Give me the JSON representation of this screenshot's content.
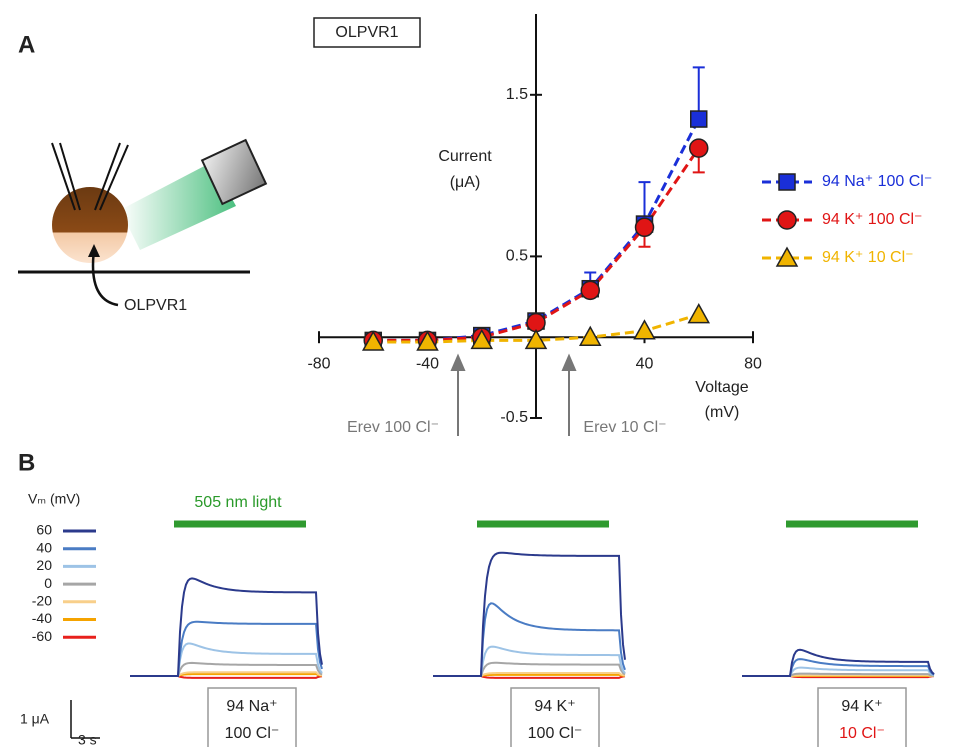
{
  "chart_data": {
    "type": "line",
    "title": "OLPVR1",
    "y_label_lines": [
      "Current",
      "(μA)"
    ],
    "x_label_lines": [
      "Voltage",
      "(mV)"
    ],
    "x": [
      -60,
      -40,
      -20,
      0,
      20,
      40,
      60
    ],
    "series": [
      {
        "name": "94 Na⁺ 100 Cl⁻",
        "color": "#1a2fd8",
        "marker": "square",
        "values": [
          -0.02,
          -0.02,
          0.01,
          0.1,
          0.3,
          0.7,
          1.35
        ],
        "errors": [
          null,
          null,
          null,
          null,
          0.1,
          0.26,
          0.32
        ]
      },
      {
        "name": "94 K⁺ 100 Cl⁻",
        "color": "#e01515",
        "marker": "circle",
        "values": [
          -0.02,
          -0.02,
          0,
          0.09,
          0.29,
          0.68,
          1.17
        ],
        "errors": [
          null,
          null,
          null,
          null,
          null,
          0.12,
          0.15
        ]
      },
      {
        "name": "94 K⁺ 10 Cl⁻",
        "color": "#f0b400",
        "marker": "triangle",
        "values": [
          -0.03,
          -0.03,
          -0.02,
          -0.02,
          0,
          0.04,
          0.14
        ],
        "errors": [
          null,
          null,
          null,
          null,
          null,
          null,
          null
        ]
      }
    ],
    "xlim": [
      -80,
      80
    ],
    "xticks": [
      -80,
      -40,
      40,
      80
    ],
    "ylim": [
      -0.5,
      2
    ],
    "yticks": [
      -0.5,
      0.5,
      1.5
    ],
    "annotations": [
      {
        "text": "Erev 100 Cl⁻",
        "x": -30
      },
      {
        "text": "Erev 10 Cl⁻",
        "x": 12
      }
    ],
    "legend": "right"
  },
  "panel_a": {
    "label": "A",
    "cell_label": "OLPVR1"
  },
  "panel_b": {
    "label": "B",
    "light_label": "505 nm light",
    "vm_title": "Vₘ (mV)",
    "scale_current": "1 μA",
    "scale_time": "3 s",
    "levels": [
      {
        "vm": 60,
        "color": "#2b3a8c"
      },
      {
        "vm": 40,
        "color": "#4a7cc4"
      },
      {
        "vm": 20,
        "color": "#9dc3e6"
      },
      {
        "vm": 0,
        "color": "#a6a6a6"
      },
      {
        "vm": -20,
        "color": "#f8cf8a"
      },
      {
        "vm": -40,
        "color": "#f5a300"
      },
      {
        "vm": -60,
        "color": "#e8201c"
      }
    ],
    "conditions": [
      {
        "line1": "94 Na⁺",
        "line2": "100 Cl⁻",
        "traces": [
          {
            "peak": 3.1,
            "steady": 2.2
          },
          {
            "peak": 1.55,
            "steady": 1.37
          },
          {
            "peak": 1.16,
            "steady": 0.58
          },
          {
            "peak": 0.42,
            "steady": 0.29
          },
          {
            "peak": 0.1,
            "steady": 0.1
          },
          {
            "peak": 0.05,
            "steady": 0.05
          },
          {
            "peak": -0.05,
            "steady": -0.05
          }
        ]
      },
      {
        "line1": "94 K⁺",
        "line2": "100 Cl⁻",
        "traces": [
          {
            "peak": 3.45,
            "steady": 3.16
          },
          {
            "peak": 2.66,
            "steady": 1.2
          },
          {
            "peak": 1.03,
            "steady": 0.55
          },
          {
            "peak": 0.42,
            "steady": 0.3
          },
          {
            "peak": 0.08,
            "steady": 0.08
          },
          {
            "peak": 0.03,
            "steady": 0.03
          },
          {
            "peak": -0.05,
            "steady": -0.05
          }
        ]
      },
      {
        "line1": "94 K⁺",
        "line2": "10 Cl⁻",
        "traces": [
          {
            "peak": 1.0,
            "steady": 0.37
          },
          {
            "peak": 0.63,
            "steady": 0.26
          },
          {
            "peak": 0.3,
            "steady": 0.15
          },
          {
            "peak": 0.08,
            "steady": 0.05
          },
          {
            "peak": 0.02,
            "steady": 0.02
          },
          {
            "peak": 0,
            "steady": 0
          },
          {
            "peak": -0.03,
            "steady": -0.03
          }
        ]
      }
    ]
  }
}
